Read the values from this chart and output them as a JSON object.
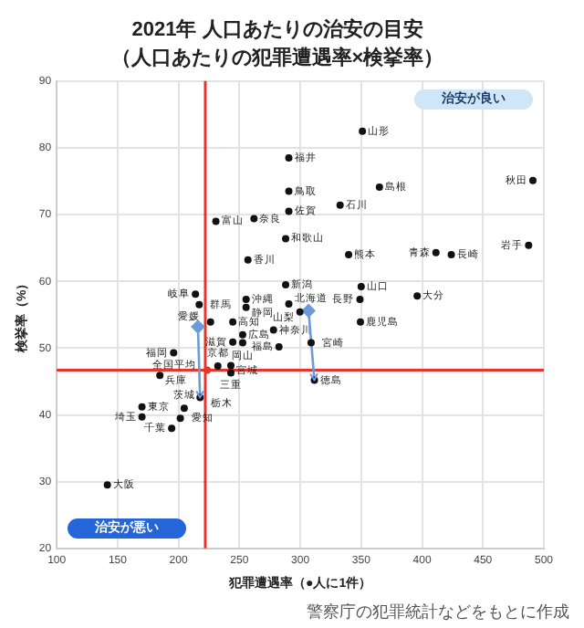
{
  "chart_data": {
    "type": "scatter",
    "title": "2021年 人口あたりの治安の目安",
    "subtitle": "（人口あたりの犯罪遭遇率×検挙率）",
    "xlabel": "犯罪遭遇率（●人に1件）",
    "ylabel": "検挙率（%）",
    "xlim": [
      100,
      500
    ],
    "xticks": [
      100,
      150,
      200,
      250,
      300,
      350,
      400,
      450,
      500
    ],
    "ylim": [
      20,
      90
    ],
    "yticks": [
      20,
      30,
      40,
      50,
      60,
      70,
      80,
      90
    ],
    "grid": true,
    "marker": "circle",
    "series": [
      {
        "type": "scatter",
        "color": "#111111",
        "x": [
          351,
          290.6,
          365,
          491,
          290.6,
          332.7,
          290.6,
          288,
          339.7,
          411.4,
          424,
          487.5,
          288,
          350,
          349,
          396,
          290.6,
          349.4,
          299.7,
          308.9,
          282.5,
          278,
          252.7,
          252.7,
          244.6,
          226.3,
          244.6,
          230.7,
          262,
          257,
          213.9,
          217,
          255.5,
          255.5,
          196,
          170,
          170,
          194.4,
          201.5,
          204.7,
          184.7,
          232.3,
          243,
          243,
          141.6,
          217.7,
          311.6
        ],
        "values": [
          82.5,
          78.5,
          74.1,
          75.1,
          73.5,
          71.4,
          70.5,
          66.4,
          64,
          64.3,
          64,
          65.4,
          59.5,
          59.2,
          57.3,
          57.8,
          56.6,
          53.9,
          55.4,
          50.8,
          50.2,
          52.7,
          52,
          50.8,
          50.9,
          53.9,
          53.9,
          69,
          69.4,
          63.2,
          58.1,
          56.5,
          57.3,
          56.1,
          49.3,
          41.2,
          39.7,
          38,
          39.5,
          41,
          45.9,
          47.3,
          47.4,
          46.3,
          29.5,
          42.6,
          45.2
        ]
      },
      {
        "type": "scatter",
        "color": "#e8352b",
        "x": [
          223.6
        ],
        "values": [
          46.7
        ]
      },
      {
        "type": "line",
        "marker": "diamond",
        "color": "#6b9bd8",
        "x": [
          216,
          217.7
        ],
        "values": [
          53.2,
          42.6
        ]
      },
      {
        "type": "line",
        "marker": "diamond",
        "color": "#6b9bd8",
        "x": [
          306.8,
          311.6
        ],
        "values": [
          55.6,
          45.2
        ]
      }
    ],
    "ref_lines": [
      {
        "axis": "x",
        "value": 222,
        "color": "#e8352b"
      },
      {
        "axis": "y",
        "value": 46.7,
        "color": "#e8352b"
      }
    ],
    "annotations": [
      "治安が良い",
      "治安が悪い",
      "警察庁の犯罪統計などをもとに作成",
      {
        "text": "山形",
        "x": 351,
        "y": 82.5
      },
      {
        "text": "福井",
        "x": 290.6,
        "y": 78.5
      },
      {
        "text": "島根",
        "x": 365,
        "y": 74.1
      },
      {
        "text": "秋田",
        "x": 491,
        "y": 75.1
      },
      {
        "text": "鳥取",
        "x": 290.6,
        "y": 73.5
      },
      {
        "text": "石川",
        "x": 332.7,
        "y": 71.4
      },
      {
        "text": "佐賀",
        "x": 290.6,
        "y": 70.5
      },
      {
        "text": "和歌山",
        "x": 288,
        "y": 66.4
      },
      {
        "text": "熊本",
        "x": 339.7,
        "y": 64
      },
      {
        "text": "青森",
        "x": 411.4,
        "y": 64.3
      },
      {
        "text": "長崎",
        "x": 424,
        "y": 64
      },
      {
        "text": "岩手",
        "x": 487.5,
        "y": 65.4
      },
      {
        "text": "新潟",
        "x": 288,
        "y": 59.5
      },
      {
        "text": "山口",
        "x": 350,
        "y": 59.2
      },
      {
        "text": "長野",
        "x": 349,
        "y": 57.3
      },
      {
        "text": "大分",
        "x": 396,
        "y": 57.8
      },
      {
        "text": "北海道",
        "x": 290.6,
        "y": 56.6
      },
      {
        "text": "鹿児島",
        "x": 349.4,
        "y": 53.9
      },
      {
        "text": "山梨",
        "x": 299.7,
        "y": 55.4
      },
      {
        "text": "宮崎",
        "x": 308.9,
        "y": 50.8
      },
      {
        "text": "福島",
        "x": 282.5,
        "y": 50.2
      },
      {
        "text": "神奈川",
        "x": 278,
        "y": 52.7
      },
      {
        "text": "広島",
        "x": 252.7,
        "y": 52
      },
      {
        "text": "岡山",
        "x": 252.7,
        "y": 50.8
      },
      {
        "text": "滋賀",
        "x": 244.6,
        "y": 50.9
      },
      {
        "text": "愛媛",
        "x": 226.3,
        "y": 53.9
      },
      {
        "text": "高知",
        "x": 244.6,
        "y": 53.9
      },
      {
        "text": "富山",
        "x": 230.7,
        "y": 69
      },
      {
        "text": "奈良",
        "x": 262,
        "y": 69.4
      },
      {
        "text": "香川",
        "x": 257,
        "y": 63.2
      },
      {
        "text": "岐阜",
        "x": 213.9,
        "y": 58.1
      },
      {
        "text": "群馬",
        "x": 217,
        "y": 56.5
      },
      {
        "text": "沖縄",
        "x": 255.5,
        "y": 57.3
      },
      {
        "text": "静岡",
        "x": 255.5,
        "y": 56.1
      },
      {
        "text": "福岡",
        "x": 196,
        "y": 49.3
      },
      {
        "text": "東京",
        "x": 170,
        "y": 41.2
      },
      {
        "text": "埼玉",
        "x": 170,
        "y": 39.7
      },
      {
        "text": "千葉",
        "x": 194.4,
        "y": 38
      },
      {
        "text": "愛知",
        "x": 201.5,
        "y": 39.5
      },
      {
        "text": "茨城",
        "x": 204.7,
        "y": 41
      },
      {
        "text": "兵庫",
        "x": 184.7,
        "y": 45.9
      },
      {
        "text": "京都",
        "x": 232.3,
        "y": 47.3
      },
      {
        "text": "宮城",
        "x": 243,
        "y": 47.4
      },
      {
        "text": "三重",
        "x": 243,
        "y": 46.3
      },
      {
        "text": "大阪",
        "x": 141.6,
        "y": 29.5
      },
      {
        "text": "栃木",
        "x": 217.7,
        "y": 42.6
      },
      {
        "text": "徳島",
        "x": 311.6,
        "y": 45.2
      },
      {
        "text": "全国平均",
        "x": 223.6,
        "y": 46.7
      }
    ]
  }
}
